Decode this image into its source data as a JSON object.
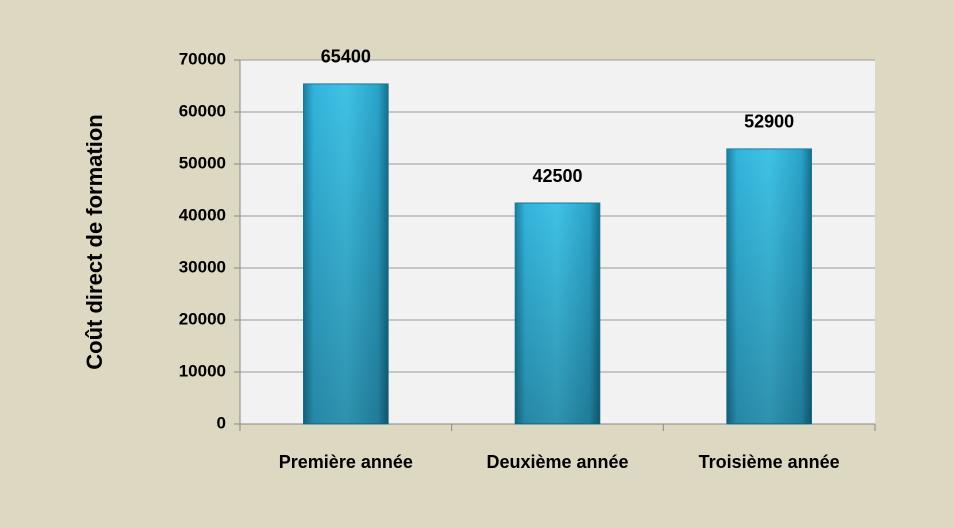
{
  "chart_data": {
    "type": "bar",
    "y_label": "Coût direct de formation",
    "categories": [
      "Première année",
      "Deuxième année",
      "Troisième année"
    ],
    "values": [
      65400,
      42500,
      52900
    ],
    "color": "#30add4",
    "ylim": [
      0,
      70000
    ],
    "yticks": [
      0,
      10000,
      20000,
      30000,
      40000,
      50000,
      60000,
      70000
    ],
    "grid": true
  }
}
